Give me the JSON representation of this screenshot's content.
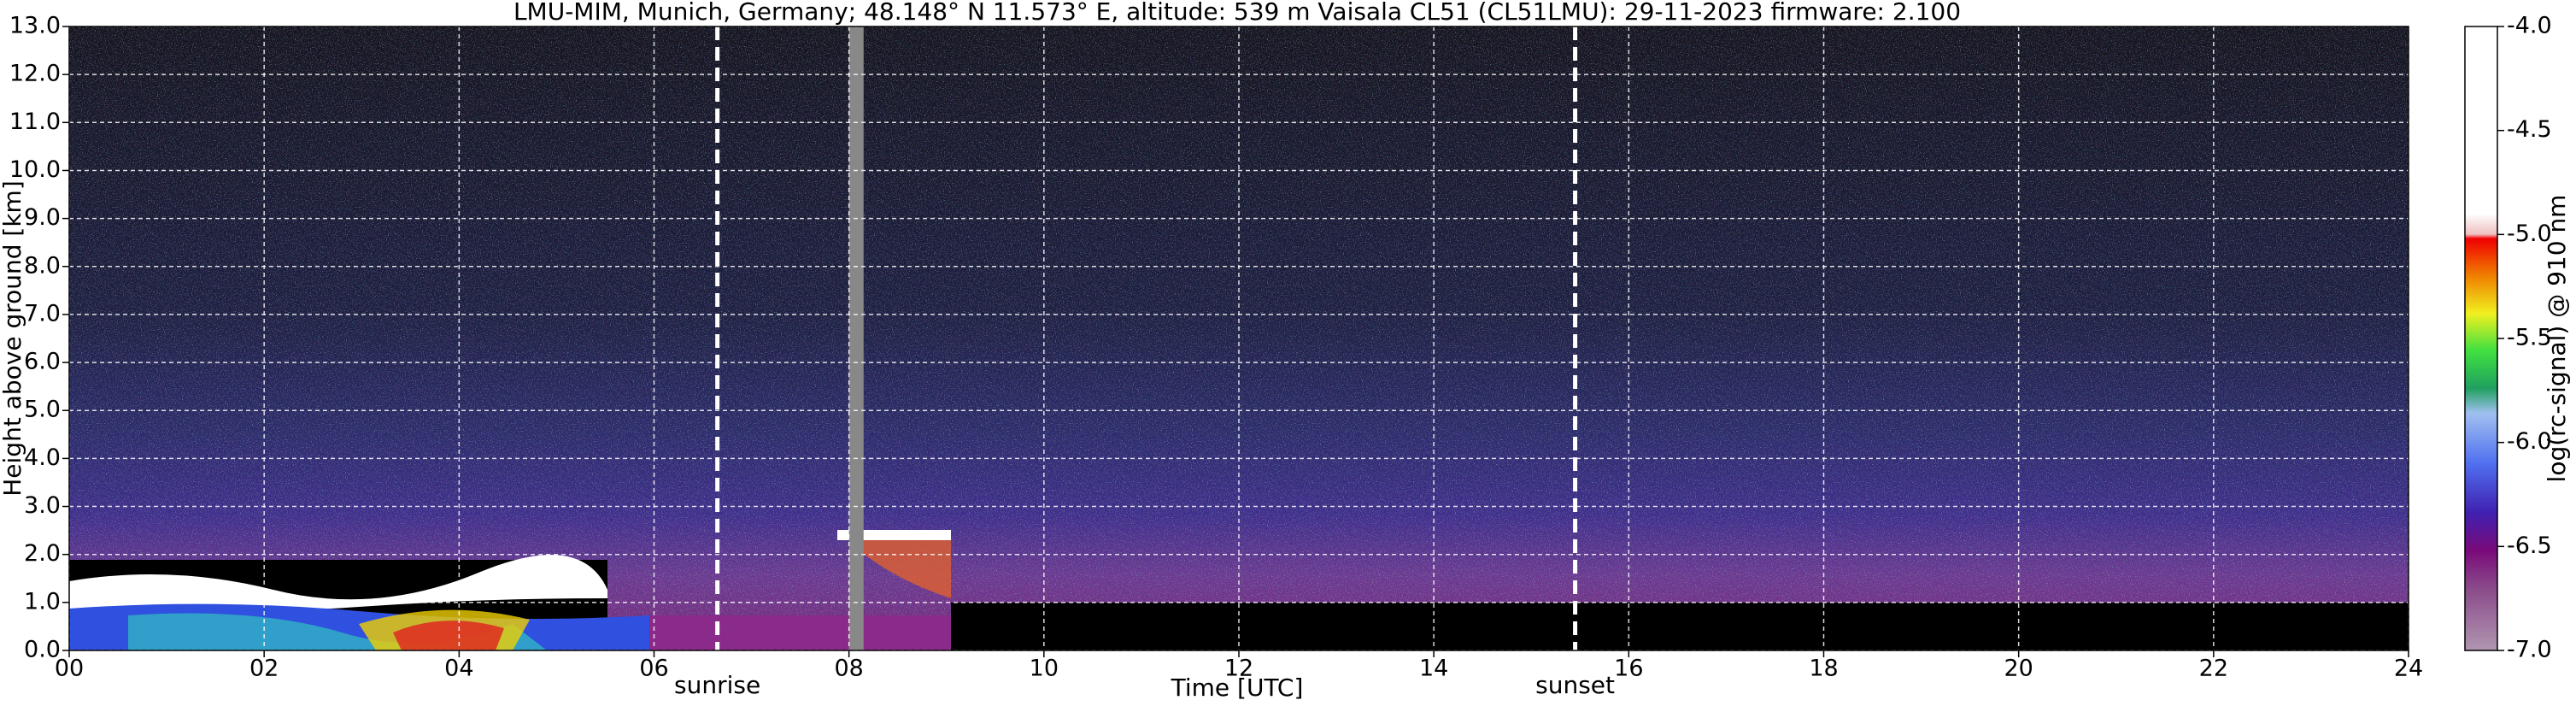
{
  "chart_data": {
    "type": "heatmap",
    "title": "LMU-MIM, Munich, Germany; 48.148° N 11.573° E, altitude: 539 m    Vaisala CL51 (CL51LMU): 29-11-2023    firmware: 2.100",
    "x_label": "Time [UTC]",
    "y_label": "Height above ground [km]",
    "colorbar_label": "log(rc-signal) @ 910 nm",
    "xlim": [
      0,
      24
    ],
    "xticks": [
      {
        "value": 0,
        "label": "00"
      },
      {
        "value": 2,
        "label": "02"
      },
      {
        "value": 4,
        "label": "04"
      },
      {
        "value": 6,
        "label": "06"
      },
      {
        "value": 8,
        "label": "08"
      },
      10,
      12,
      14,
      16,
      18,
      20,
      22,
      24
    ],
    "ylim": [
      0,
      13
    ],
    "yticks": [
      {
        "value": 0,
        "label": "0.0"
      },
      {
        "value": 1,
        "label": "1.0"
      },
      {
        "value": 2,
        "label": "2.0"
      },
      {
        "value": 3,
        "label": "3.0"
      },
      {
        "value": 4,
        "label": "4.0"
      },
      {
        "value": 5,
        "label": "5.0"
      },
      {
        "value": 6,
        "label": "6.0"
      },
      {
        "value": 7,
        "label": "7.0"
      },
      {
        "value": 8,
        "label": "8.0"
      },
      {
        "value": 9,
        "label": "9.0"
      },
      {
        "value": 10,
        "label": "10.0"
      },
      {
        "value": 11,
        "label": "11.0"
      },
      {
        "value": 12,
        "label": "12.0"
      },
      {
        "value": 13,
        "label": "13.0"
      }
    ],
    "clim": [
      -7,
      -4
    ],
    "cticks": [
      {
        "value": -4,
        "label": "-4.0"
      },
      {
        "value": -4.5,
        "label": "-4.5"
      },
      {
        "value": -5,
        "label": "-5.0"
      },
      {
        "value": -5.5,
        "label": "-5.5"
      },
      {
        "value": -6,
        "label": "-6.0"
      },
      {
        "value": -6.5,
        "label": "-6.5"
      },
      {
        "value": -7,
        "label": "-7.0"
      }
    ],
    "annotations": [
      {
        "value": 6.65,
        "label": "sunrise"
      },
      {
        "value": 15.45,
        "label": "sunset"
      }
    ],
    "data_gap": [
      8.0,
      8.15
    ],
    "grid": true
  }
}
